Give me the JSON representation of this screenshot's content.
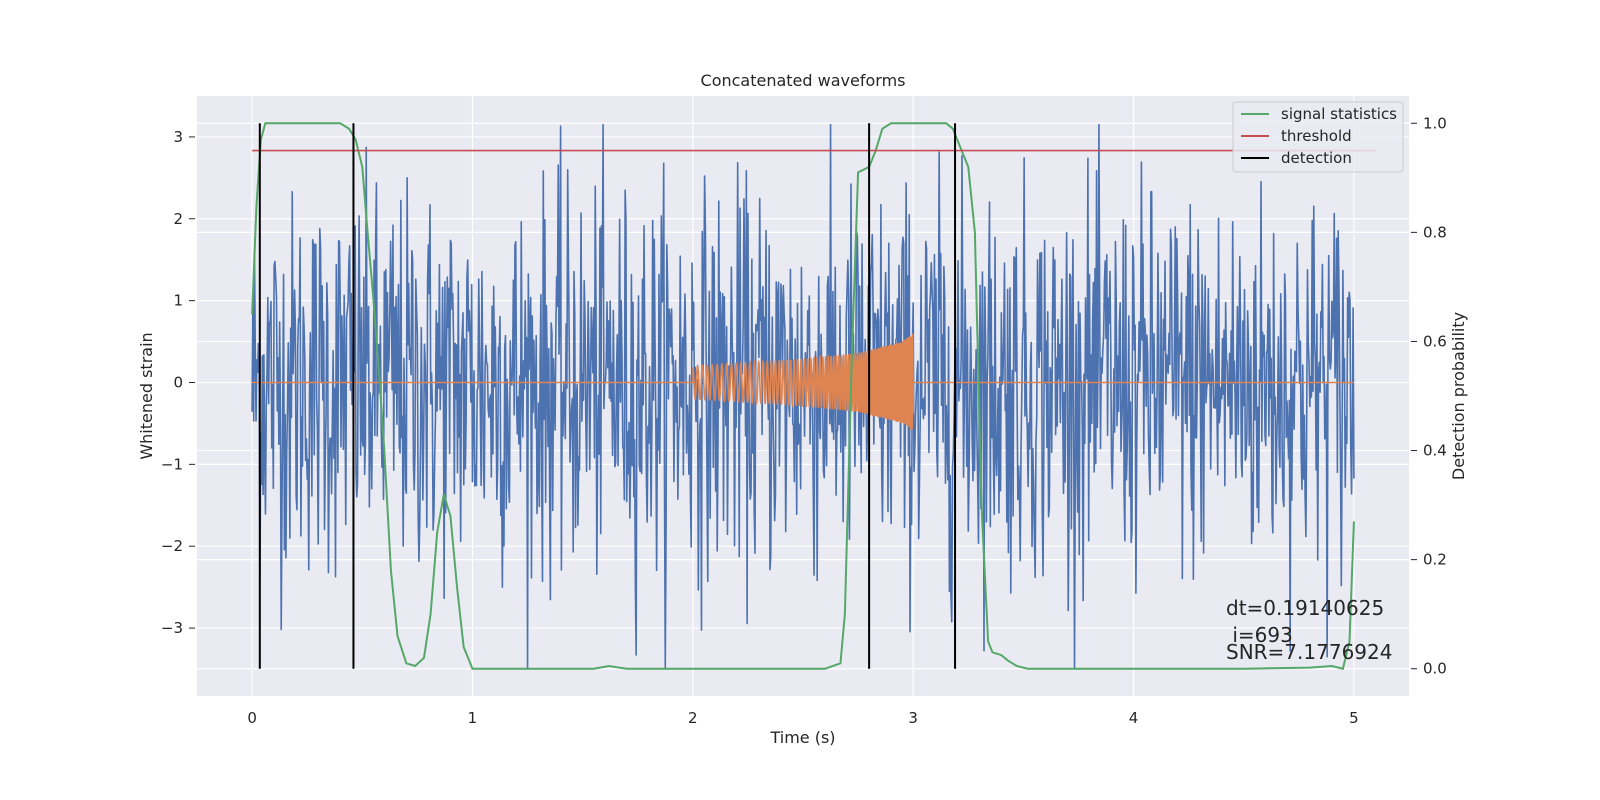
{
  "chart_data": {
    "type": "line",
    "title": "Concatenated waveforms",
    "xlabel": "Time (s)",
    "ylabel": "Whitened strain",
    "y2label": "Detection probability",
    "xlim": [
      -0.25,
      5.25
    ],
    "ylim": [
      -3.83,
      3.5
    ],
    "y2lim": [
      -0.05,
      1.05
    ],
    "x_ticks": [
      0,
      1,
      2,
      3,
      4,
      5
    ],
    "y_ticks": [
      -3,
      -2,
      -1,
      0,
      1,
      2,
      3
    ],
    "y2_ticks": [
      0.0,
      0.2,
      0.4,
      0.6,
      0.8,
      1.0
    ],
    "x_tick_labels": [
      "0",
      "1",
      "2",
      "3",
      "4",
      "5"
    ],
    "y_tick_labels": [
      "−3",
      "−2",
      "−1",
      "0",
      "1",
      "2",
      "3"
    ],
    "y2_tick_labels": [
      "0.0",
      "0.2",
      "0.4",
      "0.6",
      "0.8",
      "1.0"
    ],
    "grid": true,
    "legend_position": "top-right",
    "colors": {
      "background": "#eaeaf2",
      "grid": "#ffffff",
      "strain": "#4c72b0",
      "template": "#dd8452",
      "signal_statistics": "#55a868",
      "threshold": "#c44e52",
      "detection": "#000000"
    },
    "series": [
      {
        "name": "whitened strain (noise)",
        "axis": "left",
        "x_range": [
          0,
          5
        ],
        "approx_min": -3.5,
        "approx_max": 3.15,
        "description_values": {
          "typical_amplitude": 1.6,
          "peak_amplitude": 3.1
        }
      },
      {
        "name": "injected waveform",
        "axis": "left",
        "x": [
          0.0,
          2.0,
          2.0,
          2.25,
          2.5,
          2.75,
          2.95,
          3.0,
          3.0,
          5.0
        ],
        "envelope": [
          0.0,
          0.0,
          0.2,
          0.24,
          0.29,
          0.36,
          0.5,
          0.6,
          0.0,
          0.0
        ]
      },
      {
        "name": "signal statistics",
        "axis": "right",
        "x": [
          0.0,
          0.02,
          0.04,
          0.06,
          0.08,
          0.12,
          0.2,
          0.3,
          0.4,
          0.44,
          0.47,
          0.5,
          0.52,
          0.55,
          0.58,
          0.6,
          0.63,
          0.66,
          0.7,
          0.74,
          0.78,
          0.81,
          0.84,
          0.87,
          0.9,
          0.93,
          0.96,
          1.0,
          1.05,
          1.2,
          1.4,
          1.55,
          1.62,
          1.7,
          2.0,
          2.3,
          2.6,
          2.67,
          2.69,
          2.72,
          2.75,
          2.8,
          2.83,
          2.86,
          2.9,
          3.0,
          3.1,
          3.15,
          3.18,
          3.21,
          3.25,
          3.28,
          3.31,
          3.34,
          3.36,
          3.4,
          3.43,
          3.47,
          3.52,
          3.6,
          4.0,
          4.5,
          4.8,
          4.9,
          4.95,
          4.98,
          5.0
        ],
        "values": [
          0.65,
          0.85,
          0.97,
          1.0,
          1.0,
          1.0,
          1.0,
          1.0,
          1.0,
          0.99,
          0.97,
          0.92,
          0.82,
          0.68,
          0.52,
          0.4,
          0.18,
          0.06,
          0.01,
          0.005,
          0.02,
          0.1,
          0.25,
          0.32,
          0.28,
          0.15,
          0.04,
          0.0,
          0.0,
          0.0,
          0.0,
          0.0,
          0.005,
          0.0,
          0.0,
          0.0,
          0.0,
          0.01,
          0.1,
          0.55,
          0.91,
          0.92,
          0.95,
          0.99,
          1.0,
          1.0,
          1.0,
          1.0,
          0.99,
          0.96,
          0.92,
          0.8,
          0.3,
          0.05,
          0.03,
          0.025,
          0.015,
          0.005,
          0.0,
          0.0,
          0.0,
          0.0,
          0.002,
          0.005,
          0.0,
          0.05,
          0.27
        ]
      },
      {
        "name": "threshold",
        "axis": "right",
        "x": [
          0.0,
          5.1
        ],
        "values": [
          0.95,
          0.95
        ]
      },
      {
        "name": "detection",
        "axis": "right",
        "x": [
          0.035,
          0.46,
          2.8,
          3.19
        ],
        "range": [
          0.0,
          1.0
        ]
      }
    ],
    "legend": [
      {
        "label": "signal statistics",
        "color": "#55a868"
      },
      {
        "label": "threshold",
        "color": "#c44e52"
      },
      {
        "label": "detection",
        "color": "#000000"
      }
    ],
    "annotations": [
      {
        "text": "dt=0.19140625"
      },
      {
        "text": " i=693"
      },
      {
        "text": "SNR=7.1776924"
      }
    ]
  }
}
